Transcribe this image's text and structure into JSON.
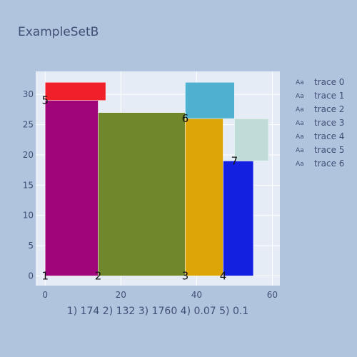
{
  "chart_data": {
    "type": "bar",
    "title": "ExampleSetB",
    "xlabel": "1) 174 2) 132 3) 1760 4) 0.07 5) 0.1",
    "ylabel": "",
    "xlim": [
      -2.5,
      62
    ],
    "ylim": [
      -1.6,
      33.8
    ],
    "xticks": [
      0,
      20,
      40,
      60
    ],
    "yticks": [
      0,
      5,
      10,
      15,
      20,
      25,
      30
    ],
    "grid": true,
    "legend_position": "top-right",
    "series": [
      {
        "name": "trace 0",
        "x0": 0,
        "x1": 14,
        "y0": 0,
        "y1": 29,
        "label": "1",
        "label_at": "bottom-left",
        "color": "#a0057a"
      },
      {
        "name": "trace 1",
        "x0": 14,
        "x1": 37,
        "y0": 0,
        "y1": 27,
        "label": "2",
        "label_at": "bottom-left",
        "color": "#71872b"
      },
      {
        "name": "trace 2",
        "x0": 37,
        "x1": 47,
        "y0": 0,
        "y1": 26,
        "label": "3",
        "label_at": "bottom-left",
        "color": "#dca508"
      },
      {
        "name": "trace 3",
        "x0": 47,
        "x1": 55,
        "y0": 0,
        "y1": 19,
        "label": "4",
        "label_at": "bottom-left",
        "color": "#1420e0"
      },
      {
        "name": "trace 4",
        "x0": 0,
        "x1": 16,
        "y0": 29,
        "y1": 32,
        "label": "5",
        "label_at": "bottom-left",
        "color": "#f0202a"
      },
      {
        "name": "trace 5",
        "x0": 37,
        "x1": 50,
        "y0": 26,
        "y1": 32,
        "label": "6",
        "label_at": "bottom-left",
        "color": "#4fb0d0"
      },
      {
        "name": "trace 6",
        "x0": 50,
        "x1": 59,
        "y0": 19,
        "y1": 26,
        "label": "7",
        "label_at": "bottom-left",
        "color": "#c0dcd8"
      }
    ]
  }
}
